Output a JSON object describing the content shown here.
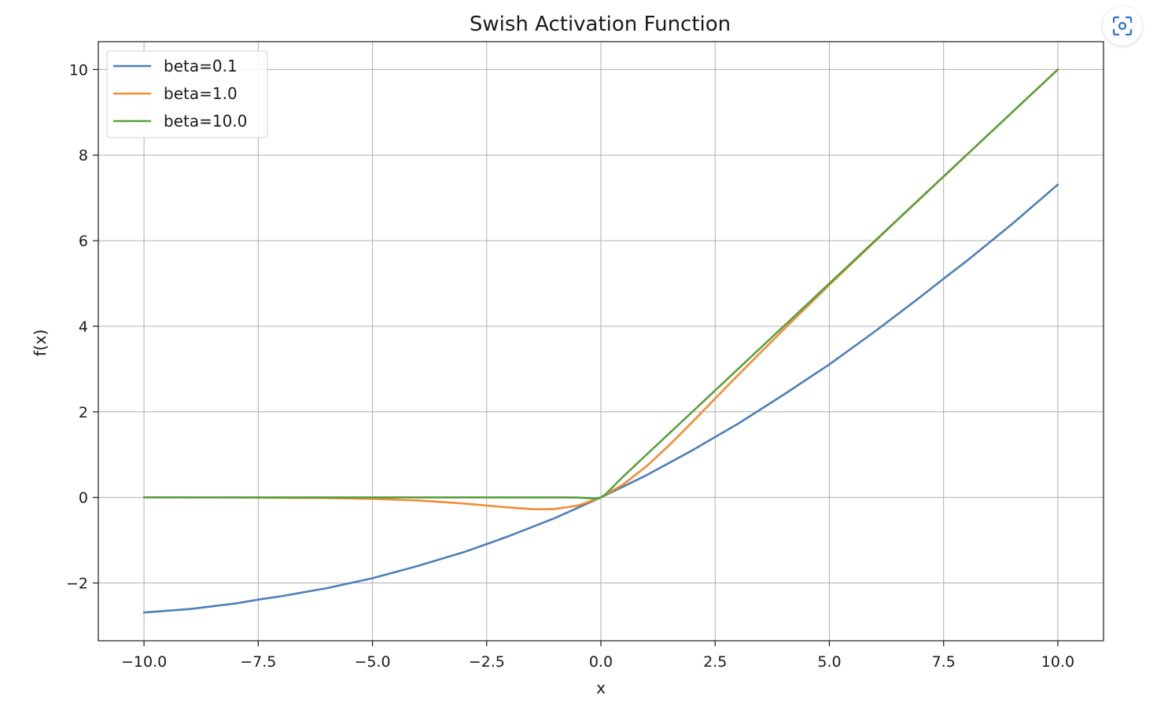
{
  "chart_data": {
    "type": "line",
    "title": "Swish Activation Function",
    "xlabel": "x",
    "ylabel": "f(x)",
    "xlim": [
      -11,
      11
    ],
    "ylim": [
      -3.35,
      10.65
    ],
    "grid": true,
    "legend_position": "top-left",
    "x_ticks": [
      {
        "value": -10.0,
        "label": "−10.0"
      },
      {
        "value": -7.5,
        "label": "−7.5"
      },
      {
        "value": -5.0,
        "label": "−5.0"
      },
      {
        "value": -2.5,
        "label": "−2.5"
      },
      {
        "value": 0.0,
        "label": "0.0"
      },
      {
        "value": 2.5,
        "label": "2.5"
      },
      {
        "value": 5.0,
        "label": "5.0"
      },
      {
        "value": 7.5,
        "label": "7.5"
      },
      {
        "value": 10.0,
        "label": "10.0"
      }
    ],
    "y_ticks": [
      {
        "value": -2,
        "label": "−2"
      },
      {
        "value": 0,
        "label": "0"
      },
      {
        "value": 2,
        "label": "2"
      },
      {
        "value": 4,
        "label": "4"
      },
      {
        "value": 6,
        "label": "6"
      },
      {
        "value": 8,
        "label": "8"
      },
      {
        "value": 10,
        "label": "10"
      }
    ],
    "series": [
      {
        "name": "beta=0.1",
        "color": "#4e7fb8",
        "x": [
          -10,
          -9,
          -8,
          -7.5,
          -7,
          -6,
          -5,
          -4,
          -3,
          -2.5,
          -2,
          -1,
          0,
          1,
          2,
          2.5,
          3,
          4,
          5,
          6,
          7,
          7.5,
          8,
          9,
          10
        ],
        "y": [
          -2.69,
          -2.61,
          -2.48,
          -2.39,
          -2.31,
          -2.12,
          -1.89,
          -1.6,
          -1.28,
          -1.09,
          -0.9,
          -0.48,
          0.0,
          0.52,
          1.1,
          1.41,
          1.72,
          2.4,
          3.11,
          3.88,
          4.69,
          5.11,
          5.52,
          6.39,
          7.31
        ]
      },
      {
        "name": "beta=1.0",
        "color": "#f28c35",
        "x": [
          -10,
          -8,
          -6,
          -5,
          -4,
          -3,
          -2.5,
          -2,
          -1.5,
          -1.28,
          -1,
          -0.5,
          0,
          0.5,
          1,
          1.5,
          2,
          2.5,
          3,
          4,
          5,
          6,
          7,
          8,
          9,
          10
        ],
        "y": [
          0.0,
          -0.003,
          -0.015,
          -0.033,
          -0.072,
          -0.142,
          -0.19,
          -0.238,
          -0.274,
          -0.278,
          -0.269,
          -0.189,
          0.0,
          0.311,
          0.731,
          1.226,
          1.762,
          2.31,
          2.858,
          3.928,
          4.967,
          5.985,
          6.994,
          7.997,
          8.999,
          10.0
        ]
      },
      {
        "name": "beta=10.0",
        "color": "#5aa040",
        "x": [
          -10,
          -5,
          -1,
          -0.5,
          -0.3,
          -0.2,
          -0.1,
          0,
          0.1,
          0.2,
          0.3,
          0.5,
          1,
          2,
          5,
          7.5,
          10
        ],
        "y": [
          0.0,
          0.0,
          0.0,
          -0.003,
          -0.014,
          -0.024,
          -0.027,
          0.0,
          0.073,
          0.176,
          0.286,
          0.497,
          1.0,
          2.0,
          5.0,
          7.5,
          10.0
        ]
      }
    ]
  },
  "toolbar": {
    "lens_icon": "lens-scan-icon"
  }
}
